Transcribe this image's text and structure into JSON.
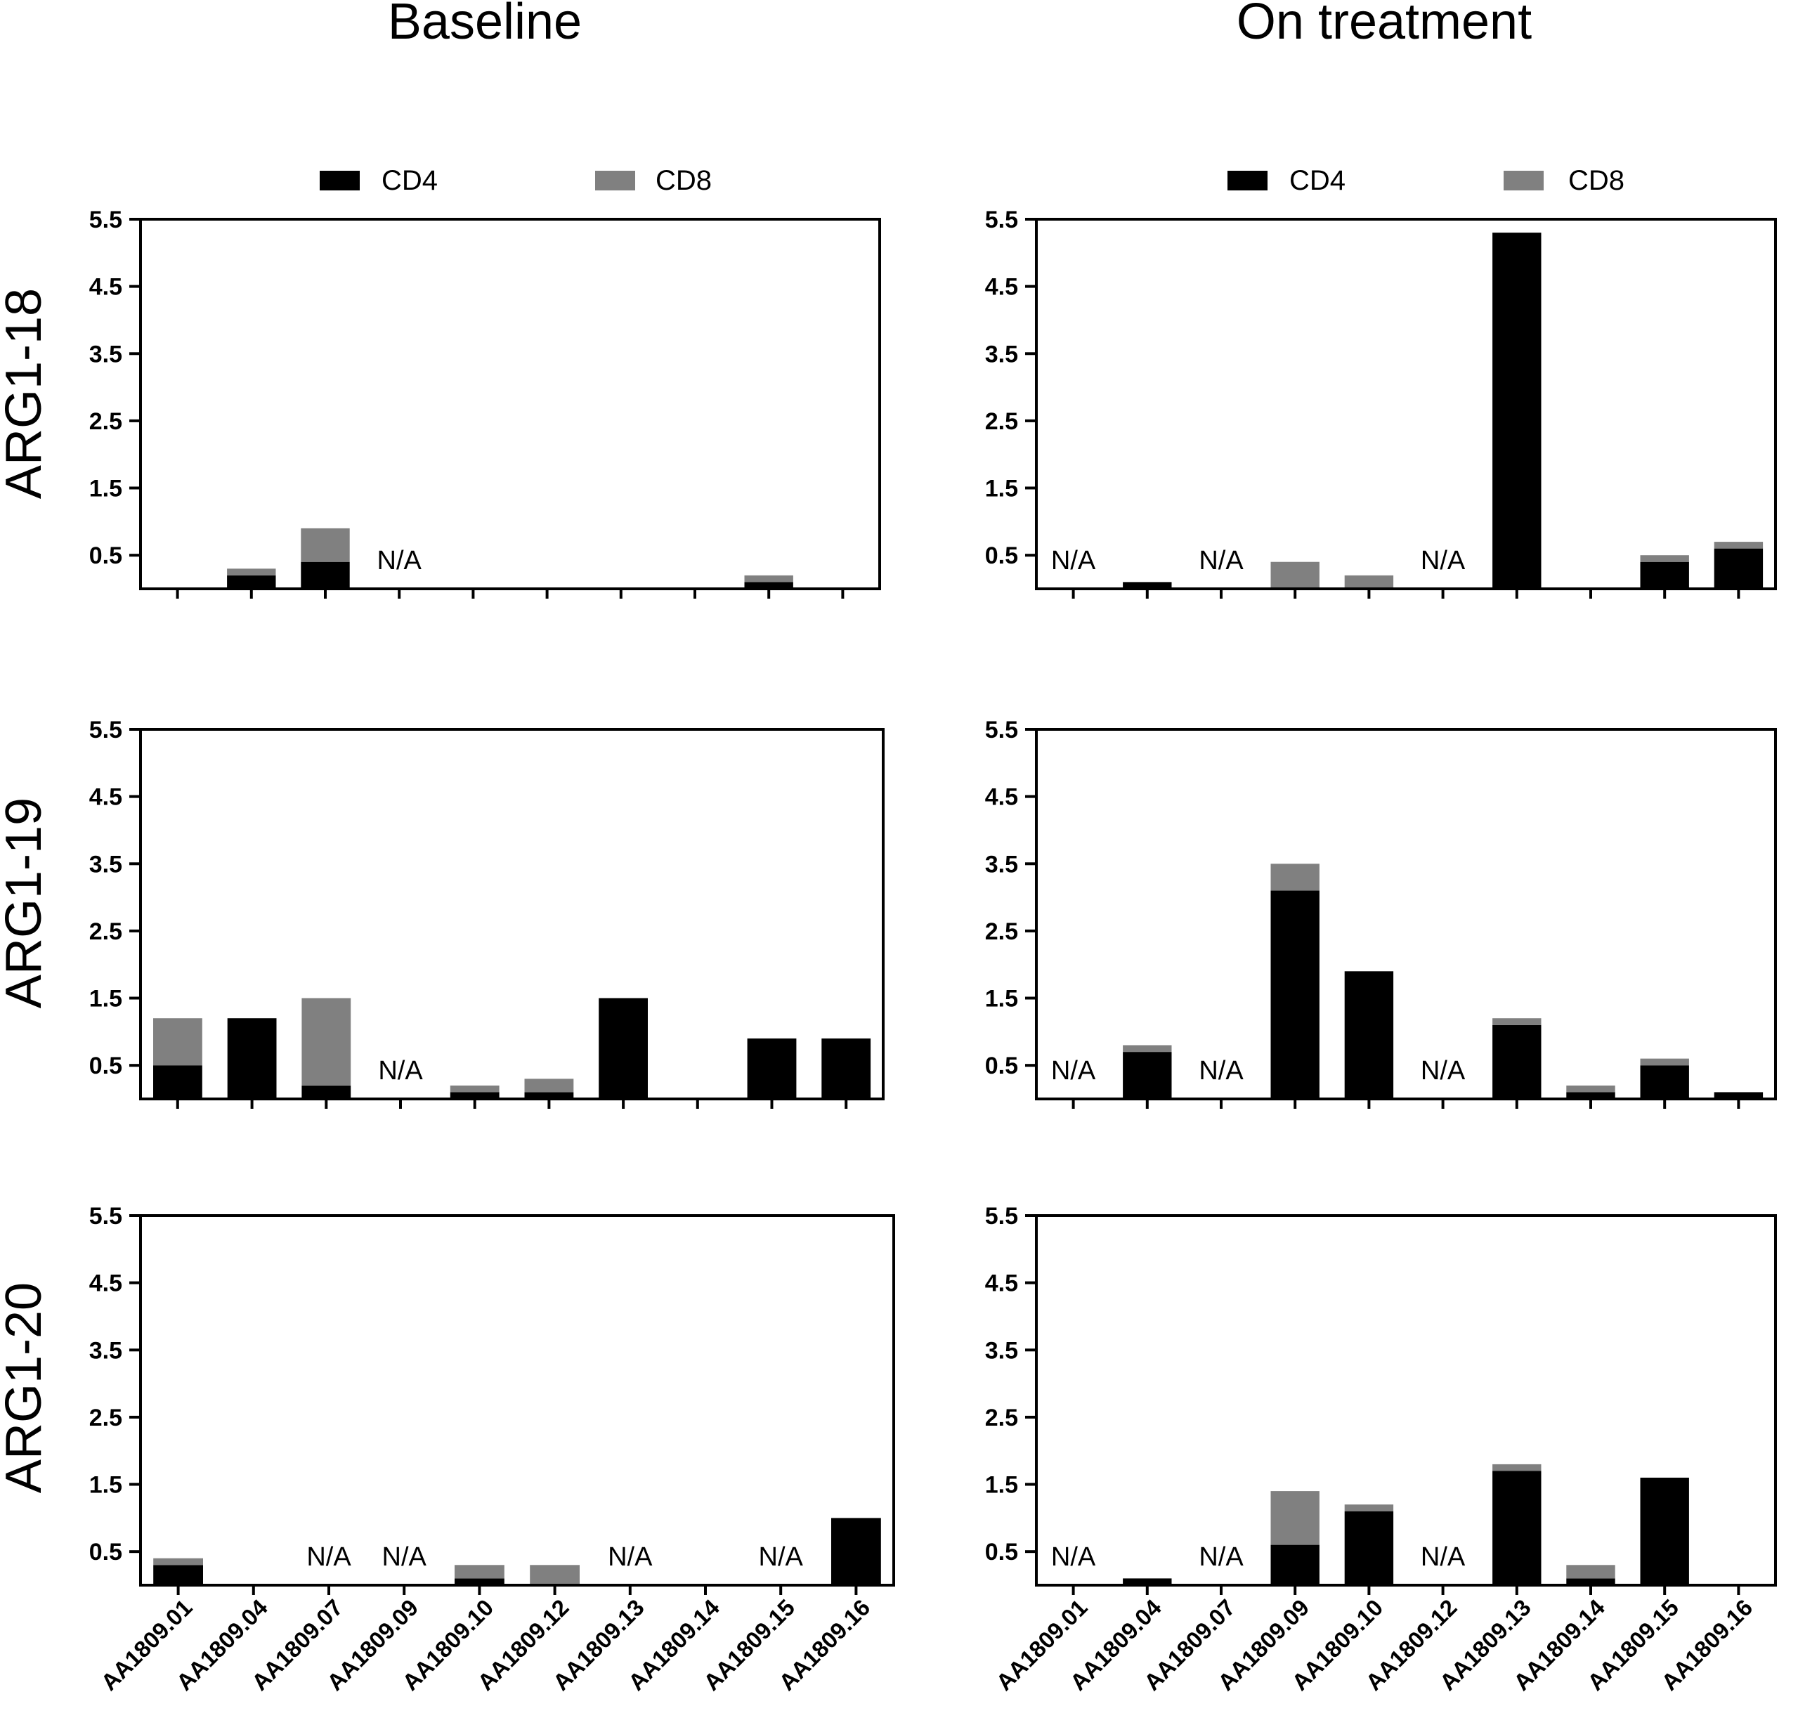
{
  "figure": {
    "columns": [
      "Baseline",
      "On treatment"
    ],
    "rows": [
      "ARG1-18",
      "ARG1-19",
      "ARG1-20"
    ],
    "legend": [
      {
        "label": "CD4",
        "color": "#000000"
      },
      {
        "label": "CD8",
        "color": "#808080"
      }
    ],
    "na_text": "N/A"
  },
  "chart_data": [
    {
      "type": "bar",
      "stacked": true,
      "row": "ARG1-18",
      "column": "Baseline",
      "categories": [
        "AA1809.01",
        "AA1809.04",
        "AA1809.07",
        "AA1809.09",
        "AA1809.10",
        "AA1809.12",
        "AA1809.13",
        "AA1809.14",
        "AA1809.15",
        "AA1809.16"
      ],
      "series": [
        {
          "name": "CD4",
          "values": [
            0,
            0.2,
            0.4,
            0,
            0,
            0,
            0,
            0,
            0.1,
            0
          ]
        },
        {
          "name": "CD8",
          "values": [
            0,
            0.1,
            0.5,
            0,
            0,
            0,
            0,
            0,
            0.1,
            0
          ]
        }
      ],
      "na": [
        "AA1809.09"
      ],
      "ylim": [
        0,
        5.5
      ],
      "yticks": [
        0.5,
        1.5,
        2.5,
        3.5,
        4.5,
        5.5
      ]
    },
    {
      "type": "bar",
      "stacked": true,
      "row": "ARG1-18",
      "column": "On treatment",
      "categories": [
        "AA1809.01",
        "AA1809.04",
        "AA1809.07",
        "AA1809.09",
        "AA1809.10",
        "AA1809.12",
        "AA1809.13",
        "AA1809.14",
        "AA1809.15",
        "AA1809.16"
      ],
      "series": [
        {
          "name": "CD4",
          "values": [
            0,
            0.1,
            0,
            0,
            0,
            0,
            5.3,
            0,
            0.4,
            0.6
          ]
        },
        {
          "name": "CD8",
          "values": [
            0,
            0,
            0,
            0.4,
            0.2,
            0,
            0,
            0,
            0.1,
            0.1
          ]
        }
      ],
      "na": [
        "AA1809.01",
        "AA1809.07",
        "AA1809.12"
      ],
      "ylim": [
        0,
        5.5
      ],
      "yticks": [
        0.5,
        1.5,
        2.5,
        3.5,
        4.5,
        5.5
      ]
    },
    {
      "type": "bar",
      "stacked": true,
      "row": "ARG1-19",
      "column": "Baseline",
      "categories": [
        "AA1809.01",
        "AA1809.04",
        "AA1809.07",
        "AA1809.09",
        "AA1809.10",
        "AA1809.12",
        "AA1809.13",
        "AA1809.14",
        "AA1809.15",
        "AA1809.16"
      ],
      "series": [
        {
          "name": "CD4",
          "values": [
            0.5,
            1.2,
            0.2,
            0,
            0.1,
            0.1,
            1.5,
            0,
            0.9,
            0.9
          ]
        },
        {
          "name": "CD8",
          "values": [
            0.7,
            0,
            1.3,
            0,
            0.1,
            0.2,
            0,
            0,
            0,
            0
          ]
        }
      ],
      "na": [
        "AA1809.09"
      ],
      "ylim": [
        0,
        5.5
      ],
      "yticks": [
        0.5,
        1.5,
        2.5,
        3.5,
        4.5,
        5.5
      ]
    },
    {
      "type": "bar",
      "stacked": true,
      "row": "ARG1-19",
      "column": "On treatment",
      "categories": [
        "AA1809.01",
        "AA1809.04",
        "AA1809.07",
        "AA1809.09",
        "AA1809.10",
        "AA1809.12",
        "AA1809.13",
        "AA1809.14",
        "AA1809.15",
        "AA1809.16"
      ],
      "series": [
        {
          "name": "CD4",
          "values": [
            0,
            0.7,
            0,
            3.1,
            1.9,
            0,
            1.1,
            0.1,
            0.5,
            0.1
          ]
        },
        {
          "name": "CD8",
          "values": [
            0,
            0.1,
            0,
            0.4,
            0,
            0,
            0.1,
            0.1,
            0.1,
            0
          ]
        }
      ],
      "na": [
        "AA1809.01",
        "AA1809.07",
        "AA1809.12"
      ],
      "ylim": [
        0,
        5.5
      ],
      "yticks": [
        0.5,
        1.5,
        2.5,
        3.5,
        4.5,
        5.5
      ]
    },
    {
      "type": "bar",
      "stacked": true,
      "row": "ARG1-20",
      "column": "Baseline",
      "categories": [
        "AA1809.01",
        "AA1809.04",
        "AA1809.07",
        "AA1809.09",
        "AA1809.10",
        "AA1809.12",
        "AA1809.13",
        "AA1809.14",
        "AA1809.15",
        "AA1809.16"
      ],
      "series": [
        {
          "name": "CD4",
          "values": [
            0.3,
            0,
            0,
            0,
            0.1,
            0,
            0,
            0,
            0,
            1.0
          ]
        },
        {
          "name": "CD8",
          "values": [
            0.1,
            0,
            0,
            0,
            0.2,
            0.3,
            0,
            0,
            0,
            0
          ]
        }
      ],
      "na": [
        "AA1809.07",
        "AA1809.09",
        "AA1809.13",
        "AA1809.15"
      ],
      "ylim": [
        0,
        5.5
      ],
      "yticks": [
        0.5,
        1.5,
        2.5,
        3.5,
        4.5,
        5.5
      ]
    },
    {
      "type": "bar",
      "stacked": true,
      "row": "ARG1-20",
      "column": "On treatment",
      "categories": [
        "AA1809.01",
        "AA1809.04",
        "AA1809.07",
        "AA1809.09",
        "AA1809.10",
        "AA1809.12",
        "AA1809.13",
        "AA1809.14",
        "AA1809.15",
        "AA1809.16"
      ],
      "series": [
        {
          "name": "CD4",
          "values": [
            0,
            0.1,
            0,
            0.6,
            1.1,
            0,
            1.7,
            0.1,
            1.6,
            0
          ]
        },
        {
          "name": "CD8",
          "values": [
            0,
            0,
            0,
            0.8,
            0.1,
            0,
            0.1,
            0.2,
            0,
            0
          ]
        }
      ],
      "na": [
        "AA1809.01",
        "AA1809.07",
        "AA1809.12"
      ],
      "ylim": [
        0,
        5.5
      ],
      "yticks": [
        0.5,
        1.5,
        2.5,
        3.5,
        4.5,
        5.5
      ]
    }
  ]
}
